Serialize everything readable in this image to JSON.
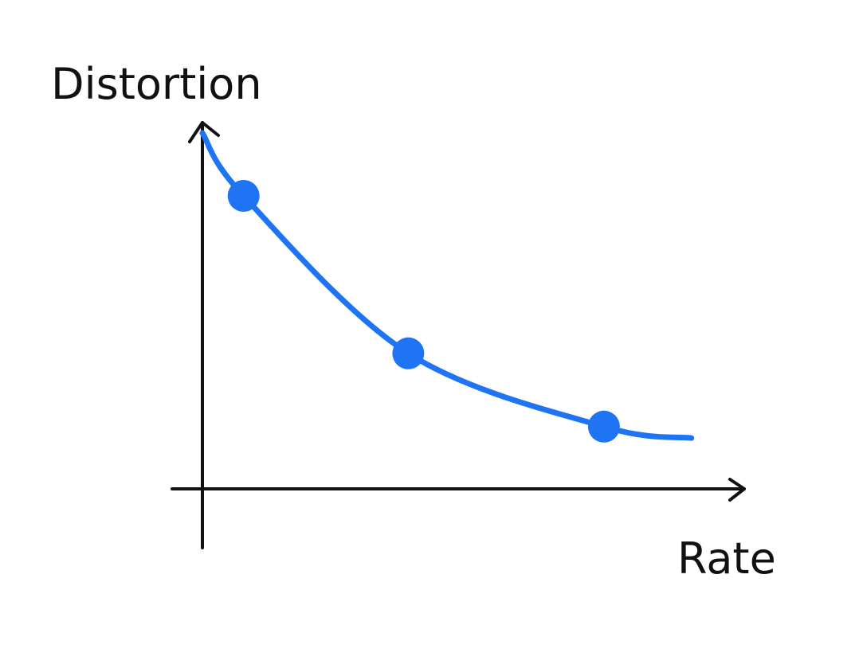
{
  "chart_data": {
    "type": "line",
    "ylabel": "Distortion",
    "xlabel": "Rate",
    "x": [
      0.08,
      0.4,
      0.78
    ],
    "series": [
      {
        "values": [
          0.8,
          0.37,
          0.17
        ],
        "color": "#1e74f2",
        "markers": true
      }
    ],
    "curve_range_x": [
      0.0,
      0.95
    ],
    "xlim": [
      0,
      1
    ],
    "ylim": [
      0,
      1
    ],
    "grid": false,
    "ticks": false
  }
}
